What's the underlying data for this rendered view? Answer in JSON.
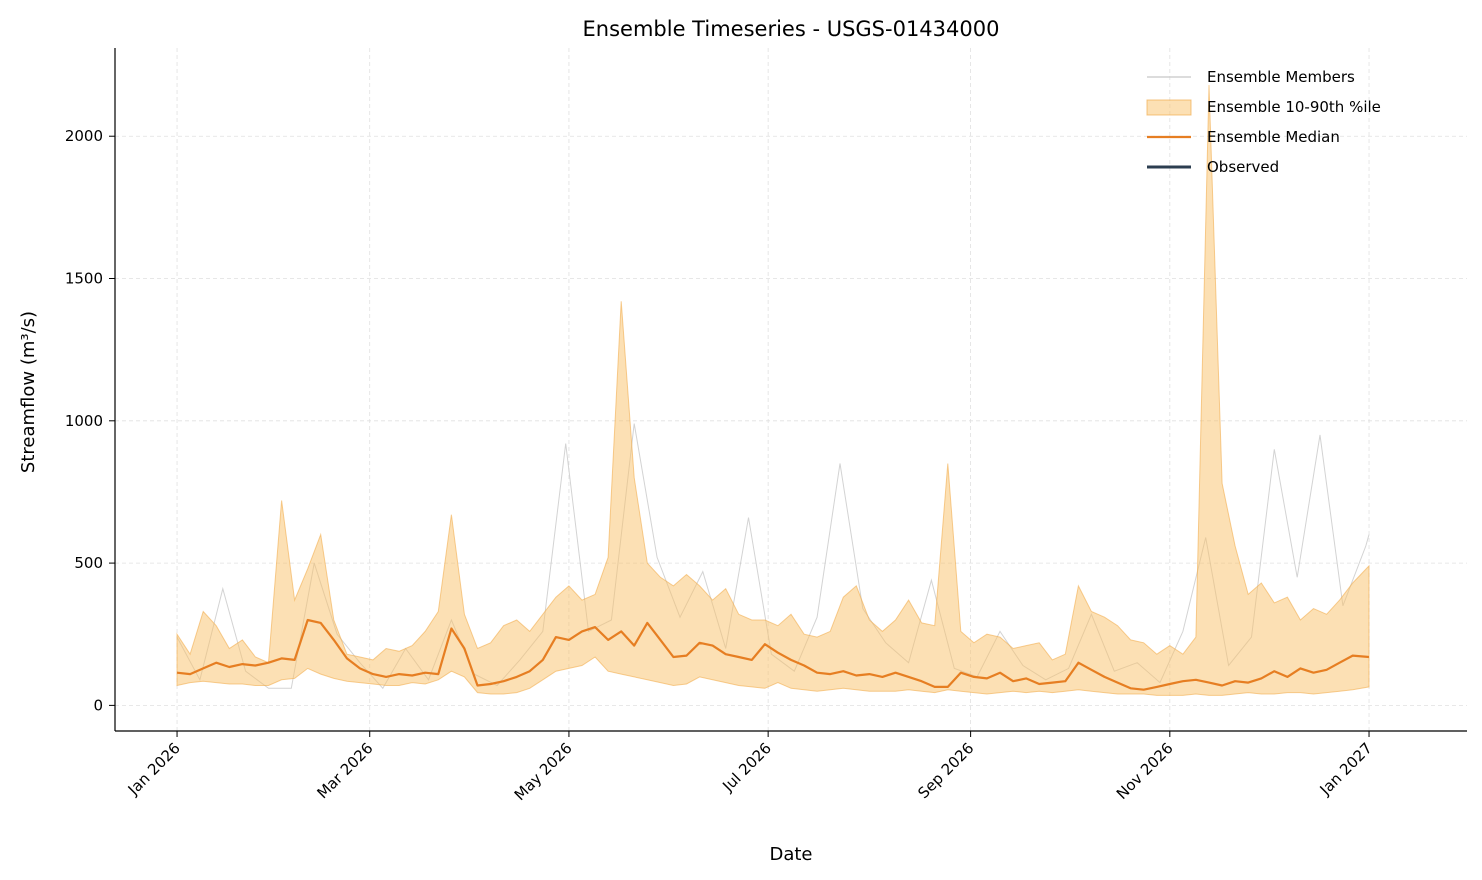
{
  "chart_data": {
    "type": "line",
    "title": "Ensemble Timeseries - USGS-01434000",
    "xlabel": "Date",
    "ylabel": "Streamflow (m³/s)",
    "xlim": [
      "2025-12-13",
      "2027-01-31"
    ],
    "ylim": [
      -90,
      2310
    ],
    "grid": true,
    "legend_position": "top-right",
    "x_ticks": [
      {
        "date": "2026-01-01",
        "label": "Jan 2026"
      },
      {
        "date": "2026-03-01",
        "label": "Mar 2026"
      },
      {
        "date": "2026-05-01",
        "label": "May 2026"
      },
      {
        "date": "2026-07-01",
        "label": "Jul 2026"
      },
      {
        "date": "2026-09-01",
        "label": "Sep 2026"
      },
      {
        "date": "2026-11-01",
        "label": "Nov 2026"
      },
      {
        "date": "2027-01-01",
        "label": "Jan 2027"
      }
    ],
    "y_ticks": [
      0,
      500,
      1000,
      1500,
      2000
    ],
    "colors": {
      "members": "#c8c8c8",
      "band_fill": "#f9c16a",
      "band_edge": "#f1ad4e",
      "median": "#e67e22",
      "observed": "#2c3e50",
      "grid": "#e0e0e0"
    },
    "legend": [
      {
        "label": "Ensemble Members",
        "key": "members"
      },
      {
        "label": "Ensemble 10-90th %ile",
        "key": "band"
      },
      {
        "label": "Ensemble Median",
        "key": "median"
      },
      {
        "label": "Observed",
        "key": "observed"
      }
    ],
    "series": [
      {
        "name": "Ensemble Median",
        "points": [
          [
            "2026-01-01",
            115
          ],
          [
            "2026-01-05",
            110
          ],
          [
            "2026-01-09",
            130
          ],
          [
            "2026-01-13",
            150
          ],
          [
            "2026-01-17",
            135
          ],
          [
            "2026-01-21",
            145
          ],
          [
            "2026-01-25",
            140
          ],
          [
            "2026-01-29",
            150
          ],
          [
            "2026-02-02",
            165
          ],
          [
            "2026-02-06",
            160
          ],
          [
            "2026-02-10",
            300
          ],
          [
            "2026-02-14",
            290
          ],
          [
            "2026-02-18",
            230
          ],
          [
            "2026-02-22",
            165
          ],
          [
            "2026-02-26",
            130
          ],
          [
            "2026-03-02",
            110
          ],
          [
            "2026-03-06",
            100
          ],
          [
            "2026-03-10",
            110
          ],
          [
            "2026-03-14",
            105
          ],
          [
            "2026-03-18",
            115
          ],
          [
            "2026-03-22",
            110
          ],
          [
            "2026-03-26",
            270
          ],
          [
            "2026-03-30",
            200
          ],
          [
            "2026-04-03",
            70
          ],
          [
            "2026-04-07",
            75
          ],
          [
            "2026-04-11",
            85
          ],
          [
            "2026-04-15",
            100
          ],
          [
            "2026-04-19",
            120
          ],
          [
            "2026-04-23",
            160
          ],
          [
            "2026-04-27",
            240
          ],
          [
            "2026-05-01",
            230
          ],
          [
            "2026-05-05",
            260
          ],
          [
            "2026-05-09",
            275
          ],
          [
            "2026-05-13",
            230
          ],
          [
            "2026-05-17",
            260
          ],
          [
            "2026-05-21",
            210
          ],
          [
            "2026-05-25",
            290
          ],
          [
            "2026-05-29",
            230
          ],
          [
            "2026-06-02",
            170
          ],
          [
            "2026-06-06",
            175
          ],
          [
            "2026-06-10",
            220
          ],
          [
            "2026-06-14",
            210
          ],
          [
            "2026-06-18",
            180
          ],
          [
            "2026-06-22",
            170
          ],
          [
            "2026-06-26",
            160
          ],
          [
            "2026-06-30",
            215
          ],
          [
            "2026-07-04",
            185
          ],
          [
            "2026-07-08",
            160
          ],
          [
            "2026-07-12",
            140
          ],
          [
            "2026-07-16",
            115
          ],
          [
            "2026-07-20",
            110
          ],
          [
            "2026-07-24",
            120
          ],
          [
            "2026-07-28",
            105
          ],
          [
            "2026-08-01",
            110
          ],
          [
            "2026-08-05",
            100
          ],
          [
            "2026-08-09",
            115
          ],
          [
            "2026-08-13",
            100
          ],
          [
            "2026-08-17",
            85
          ],
          [
            "2026-08-21",
            65
          ],
          [
            "2026-08-25",
            65
          ],
          [
            "2026-08-29",
            115
          ],
          [
            "2026-09-02",
            100
          ],
          [
            "2026-09-06",
            95
          ],
          [
            "2026-09-10",
            115
          ],
          [
            "2026-09-14",
            85
          ],
          [
            "2026-09-18",
            95
          ],
          [
            "2026-09-22",
            75
          ],
          [
            "2026-09-26",
            80
          ],
          [
            "2026-09-30",
            85
          ],
          [
            "2026-10-04",
            150
          ],
          [
            "2026-10-08",
            125
          ],
          [
            "2026-10-12",
            100
          ],
          [
            "2026-10-16",
            80
          ],
          [
            "2026-10-20",
            60
          ],
          [
            "2026-10-24",
            55
          ],
          [
            "2026-10-28",
            65
          ],
          [
            "2026-11-01",
            75
          ],
          [
            "2026-11-05",
            85
          ],
          [
            "2026-11-09",
            90
          ],
          [
            "2026-11-13",
            80
          ],
          [
            "2026-11-17",
            70
          ],
          [
            "2026-11-21",
            85
          ],
          [
            "2026-11-25",
            80
          ],
          [
            "2026-11-29",
            95
          ],
          [
            "2026-12-03",
            120
          ],
          [
            "2026-12-07",
            100
          ],
          [
            "2026-12-11",
            130
          ],
          [
            "2026-12-15",
            115
          ],
          [
            "2026-12-19",
            125
          ],
          [
            "2026-12-23",
            150
          ],
          [
            "2026-12-27",
            175
          ],
          [
            "2027-01-01",
            170
          ]
        ]
      },
      {
        "name": "Ensemble 10-90th %ile",
        "points": [
          [
            "2026-01-01",
            70,
            250
          ],
          [
            "2026-01-05",
            80,
            180
          ],
          [
            "2026-01-09",
            85,
            330
          ],
          [
            "2026-01-13",
            80,
            280
          ],
          [
            "2026-01-17",
            75,
            200
          ],
          [
            "2026-01-21",
            75,
            230
          ],
          [
            "2026-01-25",
            70,
            170
          ],
          [
            "2026-01-29",
            70,
            150
          ],
          [
            "2026-02-02",
            90,
            720
          ],
          [
            "2026-02-06",
            95,
            370
          ],
          [
            "2026-02-10",
            130,
            480
          ],
          [
            "2026-02-14",
            110,
            600
          ],
          [
            "2026-02-18",
            95,
            300
          ],
          [
            "2026-02-22",
            85,
            180
          ],
          [
            "2026-02-26",
            80,
            170
          ],
          [
            "2026-03-02",
            75,
            160
          ],
          [
            "2026-03-06",
            70,
            200
          ],
          [
            "2026-03-10",
            70,
            190
          ],
          [
            "2026-03-14",
            80,
            210
          ],
          [
            "2026-03-18",
            75,
            260
          ],
          [
            "2026-03-22",
            90,
            330
          ],
          [
            "2026-03-26",
            120,
            670
          ],
          [
            "2026-03-30",
            100,
            320
          ],
          [
            "2026-04-03",
            45,
            200
          ],
          [
            "2026-04-07",
            40,
            220
          ],
          [
            "2026-04-11",
            40,
            280
          ],
          [
            "2026-04-15",
            45,
            300
          ],
          [
            "2026-04-19",
            60,
            260
          ],
          [
            "2026-04-23",
            90,
            320
          ],
          [
            "2026-04-27",
            120,
            380
          ],
          [
            "2026-05-01",
            130,
            420
          ],
          [
            "2026-05-05",
            140,
            370
          ],
          [
            "2026-05-09",
            170,
            390
          ],
          [
            "2026-05-13",
            120,
            520
          ],
          [
            "2026-05-17",
            110,
            1420
          ],
          [
            "2026-05-21",
            100,
            800
          ],
          [
            "2026-05-25",
            90,
            500
          ],
          [
            "2026-05-29",
            80,
            450
          ],
          [
            "2026-06-02",
            70,
            420
          ],
          [
            "2026-06-06",
            75,
            460
          ],
          [
            "2026-06-10",
            100,
            420
          ],
          [
            "2026-06-14",
            90,
            370
          ],
          [
            "2026-06-18",
            80,
            410
          ],
          [
            "2026-06-22",
            70,
            320
          ],
          [
            "2026-06-26",
            65,
            300
          ],
          [
            "2026-06-30",
            60,
            300
          ],
          [
            "2026-07-04",
            80,
            280
          ],
          [
            "2026-07-08",
            60,
            320
          ],
          [
            "2026-07-12",
            55,
            250
          ],
          [
            "2026-07-16",
            50,
            240
          ],
          [
            "2026-07-20",
            55,
            260
          ],
          [
            "2026-07-24",
            60,
            380
          ],
          [
            "2026-07-28",
            55,
            420
          ],
          [
            "2026-08-01",
            50,
            300
          ],
          [
            "2026-08-05",
            50,
            260
          ],
          [
            "2026-08-09",
            50,
            300
          ],
          [
            "2026-08-13",
            55,
            370
          ],
          [
            "2026-08-17",
            50,
            290
          ],
          [
            "2026-08-21",
            45,
            280
          ],
          [
            "2026-08-25",
            55,
            850
          ],
          [
            "2026-08-29",
            50,
            260
          ],
          [
            "2026-09-02",
            45,
            220
          ],
          [
            "2026-09-06",
            40,
            250
          ],
          [
            "2026-09-10",
            45,
            240
          ],
          [
            "2026-09-14",
            50,
            200
          ],
          [
            "2026-09-18",
            45,
            210
          ],
          [
            "2026-09-22",
            50,
            220
          ],
          [
            "2026-09-26",
            45,
            160
          ],
          [
            "2026-09-30",
            50,
            180
          ],
          [
            "2026-10-04",
            55,
            420
          ],
          [
            "2026-10-08",
            50,
            330
          ],
          [
            "2026-10-12",
            45,
            310
          ],
          [
            "2026-10-16",
            40,
            280
          ],
          [
            "2026-10-20",
            40,
            230
          ],
          [
            "2026-10-24",
            40,
            220
          ],
          [
            "2026-10-28",
            35,
            180
          ],
          [
            "2026-11-01",
            35,
            210
          ],
          [
            "2026-11-05",
            35,
            180
          ],
          [
            "2026-11-09",
            40,
            240
          ],
          [
            "2026-11-13",
            35,
            2180
          ],
          [
            "2026-11-17",
            35,
            780
          ],
          [
            "2026-11-21",
            40,
            560
          ],
          [
            "2026-11-25",
            45,
            390
          ],
          [
            "2026-11-29",
            40,
            430
          ],
          [
            "2026-12-03",
            40,
            360
          ],
          [
            "2026-12-07",
            45,
            380
          ],
          [
            "2026-12-11",
            45,
            300
          ],
          [
            "2026-12-15",
            40,
            340
          ],
          [
            "2026-12-19",
            45,
            320
          ],
          [
            "2026-12-23",
            50,
            370
          ],
          [
            "2026-12-27",
            55,
            430
          ],
          [
            "2027-01-01",
            65,
            490
          ]
        ]
      },
      {
        "name": "Ensemble Members",
        "points": [
          [
            "2026-01-01",
            240
          ],
          [
            "2026-01-08",
            90
          ],
          [
            "2026-01-15",
            410
          ],
          [
            "2026-01-22",
            120
          ],
          [
            "2026-01-29",
            60
          ],
          [
            "2026-02-05",
            60
          ],
          [
            "2026-02-12",
            500
          ],
          [
            "2026-02-19",
            250
          ],
          [
            "2026-02-26",
            150
          ],
          [
            "2026-03-05",
            60
          ],
          [
            "2026-03-12",
            200
          ],
          [
            "2026-03-19",
            90
          ],
          [
            "2026-03-26",
            300
          ],
          [
            "2026-04-02",
            110
          ],
          [
            "2026-04-09",
            70
          ],
          [
            "2026-04-16",
            160
          ],
          [
            "2026-04-23",
            260
          ],
          [
            "2026-04-30",
            920
          ],
          [
            "2026-05-07",
            260
          ],
          [
            "2026-05-14",
            300
          ],
          [
            "2026-05-21",
            990
          ],
          [
            "2026-05-28",
            520
          ],
          [
            "2026-06-04",
            310
          ],
          [
            "2026-06-11",
            470
          ],
          [
            "2026-06-18",
            200
          ],
          [
            "2026-06-25",
            660
          ],
          [
            "2026-07-02",
            180
          ],
          [
            "2026-07-09",
            120
          ],
          [
            "2026-07-16",
            310
          ],
          [
            "2026-07-23",
            850
          ],
          [
            "2026-07-30",
            340
          ],
          [
            "2026-08-06",
            220
          ],
          [
            "2026-08-13",
            150
          ],
          [
            "2026-08-20",
            440
          ],
          [
            "2026-08-27",
            130
          ],
          [
            "2026-09-03",
            100
          ],
          [
            "2026-09-10",
            260
          ],
          [
            "2026-09-17",
            140
          ],
          [
            "2026-09-24",
            90
          ],
          [
            "2026-10-01",
            130
          ],
          [
            "2026-10-08",
            320
          ],
          [
            "2026-10-15",
            120
          ],
          [
            "2026-10-22",
            150
          ],
          [
            "2026-10-29",
            80
          ],
          [
            "2026-11-05",
            260
          ],
          [
            "2026-11-12",
            590
          ],
          [
            "2026-11-19",
            140
          ],
          [
            "2026-11-26",
            240
          ],
          [
            "2026-12-03",
            900
          ],
          [
            "2026-12-10",
            450
          ],
          [
            "2026-12-17",
            950
          ],
          [
            "2026-12-24",
            350
          ],
          [
            "2026-12-31",
            560
          ],
          [
            "2027-01-01",
            600
          ]
        ]
      },
      {
        "name": "Observed",
        "points": []
      }
    ]
  }
}
